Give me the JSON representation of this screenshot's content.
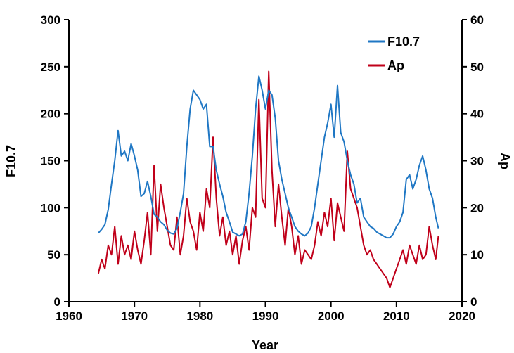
{
  "chart_data": {
    "type": "line",
    "title": "",
    "xlabel": "Year",
    "ylabel_left": "F10.7",
    "ylabel_right": "Ap",
    "xlim": [
      1960,
      2020
    ],
    "ylim_left": [
      0,
      300
    ],
    "ylim_right": [
      0,
      60
    ],
    "x_ticks": [
      1960,
      1970,
      1980,
      1990,
      2000,
      2010,
      2020
    ],
    "y_left_ticks": [
      0,
      50,
      100,
      150,
      200,
      250,
      300
    ],
    "y_right_ticks": [
      0,
      10,
      20,
      30,
      40,
      50,
      60
    ],
    "grid": false,
    "legend_position": "top-right",
    "series": [
      {
        "name": "F10.7",
        "axis": "left",
        "color": "#1f77c4",
        "x": [
          1964.5,
          1965.0,
          1965.5,
          1966.0,
          1966.5,
          1967.0,
          1967.5,
          1968.0,
          1968.5,
          1969.0,
          1969.5,
          1970.0,
          1970.5,
          1971.0,
          1971.5,
          1972.0,
          1972.5,
          1973.0,
          1973.5,
          1974.0,
          1974.5,
          1975.0,
          1975.5,
          1976.0,
          1976.5,
          1977.0,
          1977.5,
          1978.0,
          1978.5,
          1979.0,
          1979.5,
          1980.0,
          1980.5,
          1981.0,
          1981.5,
          1982.0,
          1982.5,
          1983.0,
          1983.5,
          1984.0,
          1984.5,
          1985.0,
          1985.5,
          1986.0,
          1986.5,
          1987.0,
          1987.5,
          1988.0,
          1988.5,
          1989.0,
          1989.5,
          1990.0,
          1990.5,
          1991.0,
          1991.5,
          1992.0,
          1992.5,
          1993.0,
          1993.5,
          1994.0,
          1994.5,
          1995.0,
          1995.5,
          1996.0,
          1996.5,
          1997.0,
          1997.5,
          1998.0,
          1998.5,
          1999.0,
          1999.5,
          2000.0,
          2000.5,
          2001.0,
          2001.5,
          2002.0,
          2002.5,
          2003.0,
          2003.5,
          2004.0,
          2004.5,
          2005.0,
          2005.5,
          2006.0,
          2006.5,
          2007.0,
          2007.5,
          2008.0,
          2008.5,
          2009.0,
          2009.5,
          2010.0,
          2010.5,
          2011.0,
          2011.5,
          2012.0,
          2012.5,
          2013.0,
          2013.5,
          2014.0,
          2014.5,
          2015.0,
          2015.5,
          2016.0,
          2016.4
        ],
        "values": [
          73,
          77,
          82,
          98,
          125,
          150,
          182,
          155,
          160,
          150,
          168,
          155,
          140,
          112,
          115,
          128,
          112,
          93,
          90,
          85,
          82,
          76,
          73,
          72,
          78,
          95,
          115,
          165,
          205,
          225,
          220,
          215,
          205,
          210,
          165,
          165,
          140,
          125,
          112,
          95,
          85,
          74,
          72,
          70,
          72,
          85,
          115,
          155,
          205,
          240,
          225,
          205,
          225,
          220,
          195,
          150,
          130,
          115,
          100,
          90,
          80,
          75,
          72,
          70,
          73,
          80,
          100,
          125,
          150,
          175,
          190,
          210,
          175,
          230,
          180,
          170,
          150,
          135,
          125,
          105,
          110,
          90,
          85,
          80,
          78,
          74,
          72,
          70,
          68,
          68,
          72,
          80,
          85,
          95,
          130,
          135,
          120,
          130,
          145,
          155,
          140,
          120,
          110,
          90,
          78
        ]
      },
      {
        "name": "Ap",
        "axis": "right",
        "color": "#c0001a",
        "x": [
          1964.5,
          1965.0,
          1965.5,
          1966.0,
          1966.5,
          1967.0,
          1967.5,
          1968.0,
          1968.5,
          1969.0,
          1969.5,
          1970.0,
          1970.5,
          1971.0,
          1971.5,
          1972.0,
          1972.5,
          1973.0,
          1973.5,
          1974.0,
          1974.5,
          1975.0,
          1975.5,
          1976.0,
          1976.5,
          1977.0,
          1977.5,
          1978.0,
          1978.5,
          1979.0,
          1979.5,
          1980.0,
          1980.5,
          1981.0,
          1981.5,
          1982.0,
          1982.5,
          1983.0,
          1983.5,
          1984.0,
          1984.5,
          1985.0,
          1985.5,
          1986.0,
          1986.5,
          1987.0,
          1987.5,
          1988.0,
          1988.5,
          1989.0,
          1989.5,
          1990.0,
          1990.5,
          1991.0,
          1991.5,
          1992.0,
          1992.5,
          1993.0,
          1993.5,
          1994.0,
          1994.5,
          1995.0,
          1995.5,
          1996.0,
          1996.5,
          1997.0,
          1997.5,
          1998.0,
          1998.5,
          1999.0,
          1999.5,
          2000.0,
          2000.5,
          2001.0,
          2001.5,
          2002.0,
          2002.5,
          2003.0,
          2003.5,
          2004.0,
          2004.5,
          2005.0,
          2005.5,
          2006.0,
          2006.5,
          2007.0,
          2007.5,
          2008.0,
          2008.5,
          2009.0,
          2009.5,
          2010.0,
          2010.5,
          2011.0,
          2011.5,
          2012.0,
          2012.5,
          2013.0,
          2013.5,
          2014.0,
          2014.5,
          2015.0,
          2015.5,
          2016.0,
          2016.4
        ],
        "values": [
          6,
          9,
          7,
          12,
          10,
          16,
          8,
          14,
          10,
          12,
          9,
          15,
          11,
          8,
          13,
          19,
          10,
          29,
          15,
          25,
          20,
          16,
          12,
          11,
          18,
          10,
          14,
          22,
          17,
          15,
          11,
          19,
          15,
          24,
          20,
          35,
          22,
          14,
          18,
          12,
          15,
          10,
          14,
          8,
          13,
          16,
          11,
          20,
          18,
          43,
          22,
          20,
          49,
          28,
          16,
          25,
          18,
          12,
          20,
          16,
          10,
          14,
          8,
          11,
          10,
          9,
          12,
          17,
          14,
          19,
          16,
          22,
          13,
          21,
          18,
          15,
          32,
          24,
          22,
          20,
          16,
          12,
          10,
          11,
          9,
          8,
          7,
          6,
          5,
          3,
          5,
          7,
          9,
          11,
          8,
          12,
          10,
          8,
          12,
          9,
          10,
          16,
          12,
          9,
          14
        ]
      }
    ]
  }
}
